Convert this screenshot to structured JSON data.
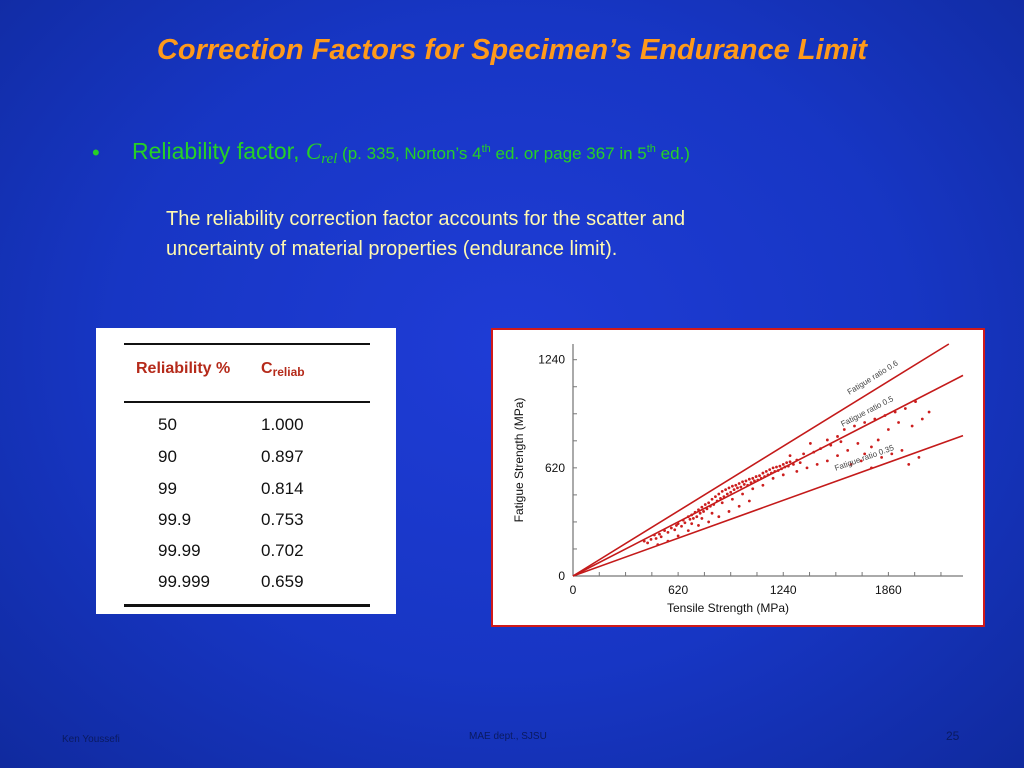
{
  "slide": {
    "title": "Correction Factors for Specimen’s Endurance Limit",
    "bullet": {
      "marker": "•",
      "label": "Reliability factor, ",
      "symbol": "C",
      "symbol_sub": "rel",
      "ref_1": " (p. 335, Norton’s 4",
      "ref_sup1": "th",
      "ref_2": " ed. or page 367 in 5",
      "ref_sup2": "th",
      "ref_3": " ed.)"
    },
    "body_line1": "The reliability correction factor accounts for the scatter and",
    "body_line2": "uncertainty of material properties (endurance limit)."
  },
  "table": {
    "header_reliability": "Reliability %",
    "header_c": "C",
    "header_c_sub": "reliab",
    "rows": [
      {
        "reliability": "50",
        "c": "1.000"
      },
      {
        "reliability": "90",
        "c": "0.897"
      },
      {
        "reliability": "99",
        "c": "0.814"
      },
      {
        "reliability": "99.9",
        "c": "0.753"
      },
      {
        "reliability": "99.99",
        "c": "0.702"
      },
      {
        "reliability": "99.999",
        "c": "0.659"
      }
    ]
  },
  "chart_data": {
    "type": "scatter",
    "xlabel": "Tensile Strength (MPa)",
    "ylabel": "Fatigue Strength (MPa)",
    "xticks": [
      "0",
      "620",
      "1240",
      "1860"
    ],
    "yticks": [
      "0",
      "620",
      "1240"
    ],
    "xlim": [
      0,
      2300
    ],
    "ylim": [
      0,
      1330
    ],
    "grid": false,
    "reference_lines": [
      {
        "label": "Fatigue ratio  0.6",
        "slope": 0.6
      },
      {
        "label": "Fatigue ratio  0.5",
        "slope": 0.5
      },
      {
        "label": "Fatigue ratio  0.35",
        "slope": 0.35
      }
    ],
    "point_color": "#cc1e1e",
    "line_color": "#c41a1a",
    "points": [
      [
        420,
        200
      ],
      [
        440,
        190
      ],
      [
        460,
        210
      ],
      [
        480,
        235
      ],
      [
        490,
        215
      ],
      [
        510,
        240
      ],
      [
        520,
        225
      ],
      [
        540,
        260
      ],
      [
        560,
        250
      ],
      [
        580,
        275
      ],
      [
        600,
        265
      ],
      [
        610,
        290
      ],
      [
        620,
        300
      ],
      [
        640,
        285
      ],
      [
        650,
        320
      ],
      [
        660,
        305
      ],
      [
        680,
        340
      ],
      [
        690,
        325
      ],
      [
        700,
        350
      ],
      [
        710,
        330
      ],
      [
        720,
        365
      ],
      [
        730,
        340
      ],
      [
        740,
        380
      ],
      [
        750,
        360
      ],
      [
        760,
        395
      ],
      [
        770,
        370
      ],
      [
        780,
        410
      ],
      [
        790,
        385
      ],
      [
        800,
        420
      ],
      [
        810,
        400
      ],
      [
        820,
        440
      ],
      [
        830,
        410
      ],
      [
        840,
        455
      ],
      [
        850,
        430
      ],
      [
        860,
        470
      ],
      [
        870,
        445
      ],
      [
        880,
        485
      ],
      [
        890,
        455
      ],
      [
        900,
        495
      ],
      [
        910,
        470
      ],
      [
        920,
        505
      ],
      [
        930,
        480
      ],
      [
        940,
        515
      ],
      [
        950,
        495
      ],
      [
        960,
        520
      ],
      [
        970,
        505
      ],
      [
        980,
        530
      ],
      [
        990,
        510
      ],
      [
        1000,
        540
      ],
      [
        1010,
        525
      ],
      [
        1020,
        545
      ],
      [
        1030,
        520
      ],
      [
        1040,
        555
      ],
      [
        1050,
        535
      ],
      [
        1060,
        560
      ],
      [
        1070,
        545
      ],
      [
        1080,
        570
      ],
      [
        1090,
        550
      ],
      [
        1100,
        575
      ],
      [
        1110,
        560
      ],
      [
        1120,
        590
      ],
      [
        1130,
        570
      ],
      [
        1140,
        600
      ],
      [
        1150,
        580
      ],
      [
        1160,
        610
      ],
      [
        1170,
        590
      ],
      [
        1180,
        620
      ],
      [
        1190,
        600
      ],
      [
        1200,
        625
      ],
      [
        1210,
        605
      ],
      [
        1220,
        630
      ],
      [
        1230,
        615
      ],
      [
        1240,
        640
      ],
      [
        1250,
        625
      ],
      [
        1260,
        650
      ],
      [
        1270,
        630
      ],
      [
        1280,
        655
      ],
      [
        1300,
        640
      ],
      [
        1320,
        665
      ],
      [
        1340,
        650
      ],
      [
        700,
        300
      ],
      [
        760,
        330
      ],
      [
        820,
        360
      ],
      [
        880,
        420
      ],
      [
        940,
        440
      ],
      [
        1000,
        470
      ],
      [
        1060,
        500
      ],
      [
        1120,
        520
      ],
      [
        1180,
        560
      ],
      [
        1240,
        580
      ],
      [
        1320,
        600
      ],
      [
        1380,
        620
      ],
      [
        1440,
        640
      ],
      [
        1500,
        660
      ],
      [
        1560,
        690
      ],
      [
        1620,
        720
      ],
      [
        1680,
        760
      ],
      [
        1720,
        700
      ],
      [
        1760,
        740
      ],
      [
        1800,
        780
      ],
      [
        1600,
        840
      ],
      [
        1660,
        860
      ],
      [
        1720,
        880
      ],
      [
        1780,
        900
      ],
      [
        1840,
        920
      ],
      [
        1900,
        940
      ],
      [
        1960,
        960
      ],
      [
        2020,
        1000
      ],
      [
        1500,
        780
      ],
      [
        1560,
        800
      ],
      [
        1420,
        710
      ],
      [
        1460,
        730
      ],
      [
        1520,
        750
      ],
      [
        1580,
        770
      ],
      [
        1640,
        640
      ],
      [
        1700,
        660
      ],
      [
        1760,
        620
      ],
      [
        1820,
        680
      ],
      [
        1880,
        700
      ],
      [
        1940,
        720
      ],
      [
        2000,
        860
      ],
      [
        2060,
        900
      ],
      [
        2100,
        940
      ],
      [
        1920,
        880
      ],
      [
        1860,
        840
      ],
      [
        1980,
        640
      ],
      [
        2040,
        680
      ],
      [
        1400,
        760
      ],
      [
        1360,
        700
      ],
      [
        1280,
        690
      ],
      [
        500,
        180
      ],
      [
        560,
        200
      ],
      [
        620,
        230
      ],
      [
        680,
        260
      ],
      [
        740,
        290
      ],
      [
        800,
        310
      ],
      [
        860,
        340
      ],
      [
        920,
        370
      ],
      [
        980,
        400
      ],
      [
        1040,
        430
      ]
    ]
  },
  "footer": {
    "author": "Ken Youssefi",
    "dept": "MAE dept., SJSU",
    "page": "25"
  }
}
